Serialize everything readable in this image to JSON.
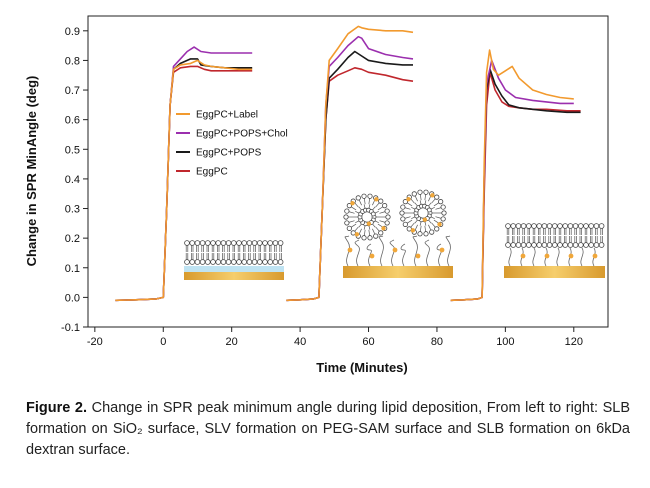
{
  "chart_data": {
    "type": "line",
    "title": "",
    "xlabel": "Time (Minutes)",
    "ylabel": "Change in SPR MinAngle (deg)",
    "xlim": [
      -22,
      130
    ],
    "ylim": [
      -0.1,
      0.95
    ],
    "xticks": [
      -20,
      0,
      20,
      40,
      60,
      80,
      100,
      120
    ],
    "xtick_labels": [
      "-20",
      "0",
      "20",
      "40",
      "60",
      "80",
      "100",
      "120"
    ],
    "yticks": [
      -0.1,
      0.0,
      0.1,
      0.2,
      0.3,
      0.4,
      0.5,
      0.6,
      0.7,
      0.8,
      0.9
    ],
    "ytick_labels": [
      "-0.1",
      "0.0",
      "0.1",
      "0.2",
      "0.3",
      "0.4",
      "0.5",
      "0.6",
      "0.7",
      "0.8",
      "0.9"
    ],
    "grid": false,
    "legend_position": "center-left",
    "series": [
      {
        "name": "EggPC+Label",
        "color": "#F29A2E",
        "segments": [
          [
            [
              -14,
              -0.01
            ],
            [
              -8,
              -0.008
            ],
            [
              -2,
              -0.005
            ],
            [
              0,
              0.0
            ],
            [
              1,
              0.3
            ],
            [
              2,
              0.65
            ],
            [
              3,
              0.77
            ],
            [
              5,
              0.785
            ],
            [
              8,
              0.79
            ],
            [
              10,
              0.8
            ],
            [
              12,
              0.785
            ],
            [
              14,
              0.78
            ],
            [
              18,
              0.775
            ],
            [
              22,
              0.77
            ],
            [
              26,
              0.77
            ]
          ],
          [
            [
              36,
              -0.01
            ],
            [
              40,
              -0.008
            ],
            [
              44,
              -0.005
            ],
            [
              45.5,
              0.0
            ],
            [
              46.5,
              0.3
            ],
            [
              47.5,
              0.65
            ],
            [
              48.5,
              0.8
            ],
            [
              51,
              0.84
            ],
            [
              54,
              0.89
            ],
            [
              57,
              0.915
            ],
            [
              58,
              0.91
            ],
            [
              60,
              0.905
            ],
            [
              65,
              0.9
            ],
            [
              70,
              0.9
            ],
            [
              73,
              0.895
            ]
          ],
          [
            [
              84,
              -0.01
            ],
            [
              88,
              -0.008
            ],
            [
              92,
              -0.005
            ],
            [
              93.2,
              0.0
            ],
            [
              93.8,
              0.45
            ],
            [
              94.5,
              0.76
            ],
            [
              95.4,
              0.835
            ],
            [
              96.5,
              0.77
            ],
            [
              98,
              0.75
            ],
            [
              100,
              0.765
            ],
            [
              102,
              0.78
            ],
            [
              104,
              0.74
            ],
            [
              108,
              0.7
            ],
            [
              112,
              0.685
            ],
            [
              116,
              0.675
            ],
            [
              120,
              0.67
            ]
          ]
        ]
      },
      {
        "name": "EggPC+POPS+Chol",
        "color": "#9B2FAE",
        "segments": [
          [
            [
              -14,
              -0.01
            ],
            [
              -8,
              -0.008
            ],
            [
              -2,
              -0.005
            ],
            [
              0,
              0.0
            ],
            [
              1,
              0.3
            ],
            [
              2,
              0.65
            ],
            [
              3,
              0.78
            ],
            [
              5,
              0.805
            ],
            [
              7,
              0.83
            ],
            [
              9,
              0.845
            ],
            [
              11,
              0.83
            ],
            [
              14,
              0.825
            ],
            [
              18,
              0.825
            ],
            [
              22,
              0.825
            ],
            [
              26,
              0.825
            ]
          ],
          [
            [
              36,
              -0.01
            ],
            [
              40,
              -0.008
            ],
            [
              44,
              -0.005
            ],
            [
              45.5,
              0.0
            ],
            [
              46.5,
              0.3
            ],
            [
              47.5,
              0.65
            ],
            [
              48.5,
              0.78
            ],
            [
              51,
              0.81
            ],
            [
              54,
              0.85
            ],
            [
              57,
              0.88
            ],
            [
              58,
              0.875
            ],
            [
              60,
              0.84
            ],
            [
              65,
              0.82
            ],
            [
              70,
              0.81
            ],
            [
              73,
              0.805
            ]
          ],
          [
            [
              84,
              -0.01
            ],
            [
              88,
              -0.008
            ],
            [
              92,
              -0.005
            ],
            [
              93.2,
              0.0
            ],
            [
              93.8,
              0.4
            ],
            [
              94.5,
              0.72
            ],
            [
              96,
              0.8
            ],
            [
              98,
              0.74
            ],
            [
              100,
              0.7
            ],
            [
              103,
              0.675
            ],
            [
              108,
              0.665
            ],
            [
              112,
              0.66
            ],
            [
              116,
              0.655
            ],
            [
              120,
              0.655
            ]
          ]
        ]
      },
      {
        "name": "EggPC+POPS",
        "color": "#1A1A1A",
        "segments": [
          [
            [
              -14,
              -0.01
            ],
            [
              -8,
              -0.008
            ],
            [
              -2,
              -0.005
            ],
            [
              0,
              0.0
            ],
            [
              1,
              0.3
            ],
            [
              2,
              0.65
            ],
            [
              3,
              0.77
            ],
            [
              5,
              0.79
            ],
            [
              8,
              0.805
            ],
            [
              10,
              0.805
            ],
            [
              11,
              0.785
            ],
            [
              14,
              0.78
            ],
            [
              18,
              0.775
            ],
            [
              22,
              0.775
            ],
            [
              26,
              0.775
            ]
          ],
          [
            [
              36,
              -0.01
            ],
            [
              40,
              -0.008
            ],
            [
              44,
              -0.005
            ],
            [
              45.5,
              0.0
            ],
            [
              46.5,
              0.3
            ],
            [
              47.5,
              0.6
            ],
            [
              48.5,
              0.74
            ],
            [
              51,
              0.77
            ],
            [
              54,
              0.81
            ],
            [
              56,
              0.83
            ],
            [
              58,
              0.815
            ],
            [
              60,
              0.8
            ],
            [
              65,
              0.79
            ],
            [
              70,
              0.785
            ],
            [
              73,
              0.785
            ]
          ],
          [
            [
              84,
              -0.01
            ],
            [
              88,
              -0.008
            ],
            [
              92,
              -0.005
            ],
            [
              93.2,
              0.0
            ],
            [
              93.8,
              0.4
            ],
            [
              94.5,
              0.7
            ],
            [
              95.5,
              0.77
            ],
            [
              97,
              0.72
            ],
            [
              99,
              0.68
            ],
            [
              101,
              0.65
            ],
            [
              104,
              0.64
            ],
            [
              108,
              0.635
            ],
            [
              112,
              0.63
            ],
            [
              118,
              0.625
            ],
            [
              122,
              0.625
            ]
          ]
        ]
      },
      {
        "name": "EggPC",
        "color": "#C0272D",
        "segments": [
          [
            [
              -14,
              -0.01
            ],
            [
              -8,
              -0.008
            ],
            [
              -2,
              -0.005
            ],
            [
              0,
              0.0
            ],
            [
              1,
              0.3
            ],
            [
              2,
              0.65
            ],
            [
              3,
              0.76
            ],
            [
              5,
              0.775
            ],
            [
              8,
              0.78
            ],
            [
              10,
              0.78
            ],
            [
              12,
              0.77
            ],
            [
              14,
              0.765
            ],
            [
              18,
              0.765
            ],
            [
              22,
              0.765
            ],
            [
              26,
              0.765
            ]
          ],
          [
            [
              36,
              -0.01
            ],
            [
              40,
              -0.008
            ],
            [
              44,
              -0.005
            ],
            [
              45.5,
              0.0
            ],
            [
              46.5,
              0.3
            ],
            [
              47.5,
              0.6
            ],
            [
              48.5,
              0.73
            ],
            [
              51,
              0.75
            ],
            [
              54,
              0.765
            ],
            [
              56,
              0.775
            ],
            [
              58,
              0.77
            ],
            [
              60,
              0.76
            ],
            [
              65,
              0.75
            ],
            [
              70,
              0.735
            ],
            [
              73,
              0.73
            ]
          ],
          [
            [
              84,
              -0.01
            ],
            [
              88,
              -0.008
            ],
            [
              92,
              -0.005
            ],
            [
              93.2,
              0.0
            ],
            [
              93.8,
              0.35
            ],
            [
              94.5,
              0.65
            ],
            [
              95.5,
              0.76
            ],
            [
              97,
              0.7
            ],
            [
              99,
              0.66
            ],
            [
              101,
              0.645
            ],
            [
              104,
              0.64
            ],
            [
              108,
              0.635
            ],
            [
              112,
              0.635
            ],
            [
              118,
              0.63
            ],
            [
              122,
              0.63
            ]
          ]
        ]
      }
    ]
  },
  "caption": {
    "label": "Figure 2.",
    "text": "Change in SPR peak minimum angle during lipid deposition, From left to right: SLB formation on SiO₂ surface, SLV formation on PEG-SAM surface and SLB formation on 6kDa dextran surface."
  },
  "colors": {
    "substrate": "#E5A93A",
    "lipid_head": "#FFFFFF",
    "lipid_tail": "#555555",
    "marker": "#F0A73A",
    "water_layer": "#BFE3F2"
  }
}
